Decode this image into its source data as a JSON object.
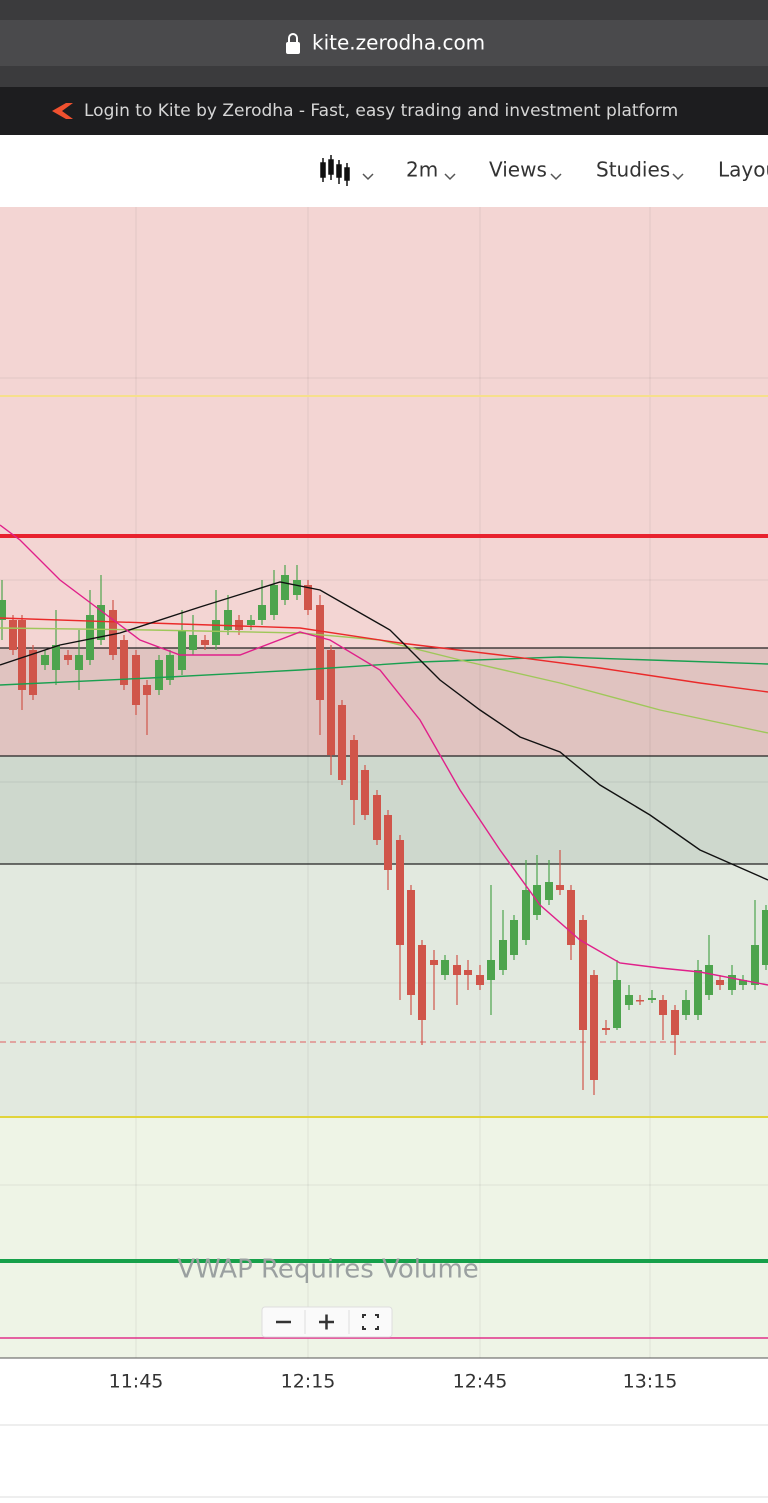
{
  "browser": {
    "url": "kite.zerodha.com",
    "tab_title": "Login to Kite by Zerodha - Fast, easy trading and investment platform"
  },
  "toolbar": {
    "items": [
      "2m",
      "Views",
      "Studies",
      "Layou"
    ]
  },
  "chart": {
    "x_labels": [
      "11:45",
      "12:15",
      "12:45",
      "13:15"
    ],
    "notice": "VWAP Requires Volume"
  }
}
